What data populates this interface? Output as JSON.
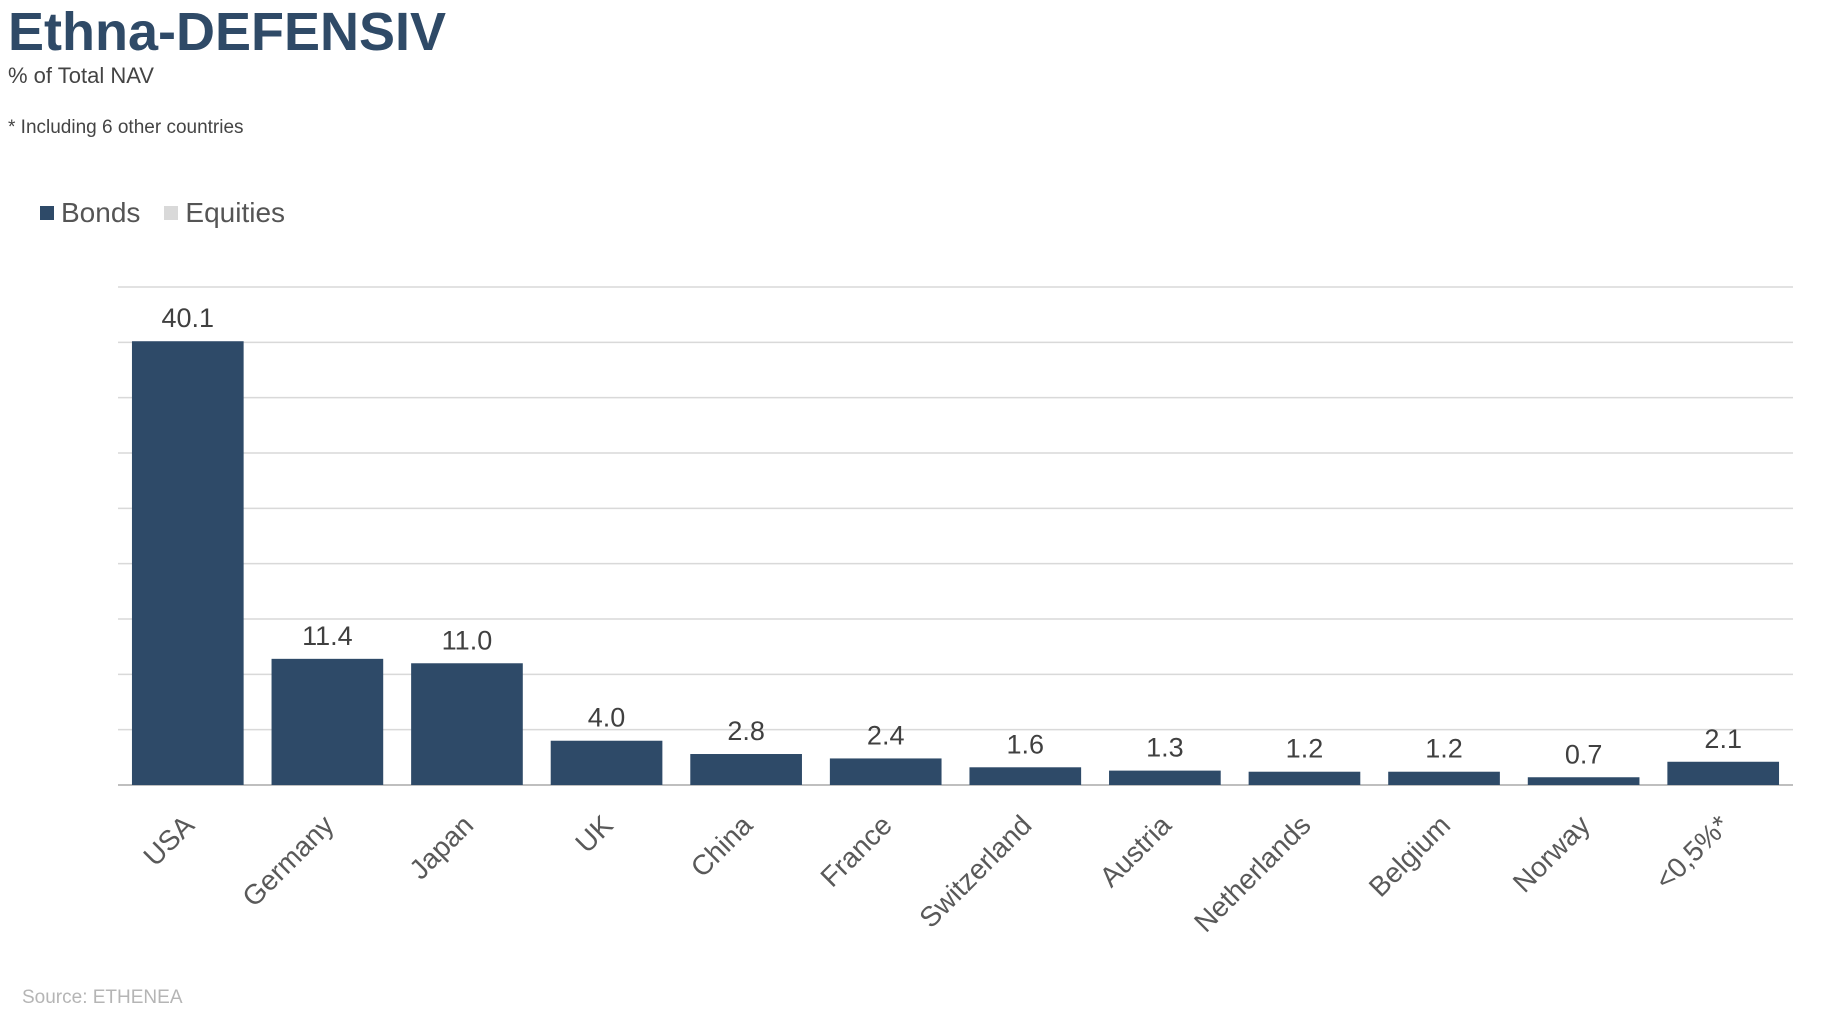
{
  "header": {
    "title": "Ethna-DEFENSIV",
    "subtitle": "% of Total NAV",
    "footnote": "* Including 6 other countries"
  },
  "legend": {
    "items": [
      {
        "label": "Bonds",
        "color": "#2e4a68"
      },
      {
        "label": "Equities",
        "color": "#d9d9d9"
      }
    ]
  },
  "footer": {
    "source": "Source: ETHENEA"
  },
  "chart_data": {
    "type": "bar",
    "title": "Ethna-DEFENSIV",
    "subtitle": "% of Total NAV",
    "categories": [
      "USA",
      "Germany",
      "Japan",
      "UK",
      "China",
      "France",
      "Switzerland",
      "Austria",
      "Netherlands",
      "Belgium",
      "Norway",
      "<0,5%*"
    ],
    "series": [
      {
        "name": "Bonds",
        "color": "#2e4a68",
        "values": [
          40.1,
          11.4,
          11.0,
          4.0,
          2.8,
          2.4,
          1.6,
          1.3,
          1.2,
          1.2,
          0.7,
          2.1
        ]
      },
      {
        "name": "Equities",
        "color": "#d9d9d9",
        "values": [
          0,
          0,
          0,
          0,
          0,
          0,
          0,
          0,
          0,
          0,
          0,
          0
        ]
      }
    ],
    "data_labels": [
      "40.1",
      "11.4",
      "11.0",
      "4.0",
      "2.8",
      "2.4",
      "1.6",
      "1.3",
      "1.2",
      "1.2",
      "0.7",
      "2.1"
    ],
    "ylim": [
      0,
      45
    ],
    "gridline_step": 5,
    "grid": true,
    "legend_position": "top-left",
    "xlabel": "",
    "ylabel": ""
  }
}
